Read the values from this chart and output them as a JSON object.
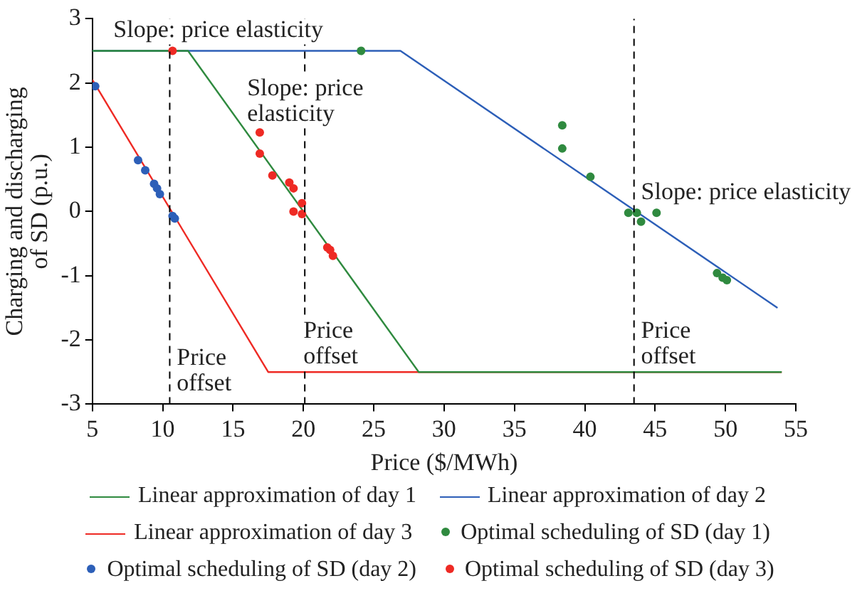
{
  "chart_data": {
    "type": "line",
    "xlabel": "Price ($/MWh)",
    "ylabel": "Charging and discharging\nof SD (p.u.)",
    "xlim": [
      5,
      55
    ],
    "xticks": [
      5,
      10,
      15,
      20,
      25,
      30,
      35,
      40,
      45,
      50,
      55
    ],
    "ylim": [
      -3,
      3
    ],
    "yticks": [
      -3,
      -2,
      -1,
      0,
      1,
      2,
      3
    ],
    "grid": false,
    "legend": "bottom",
    "marker": "none",
    "line_style": "solid",
    "series": [
      {
        "name": "Linear approximation of day 1",
        "type": "line",
        "color": "#2f8a3f",
        "x": [
          5,
          11.8,
          28.2,
          54
        ],
        "values": [
          2.5,
          2.5,
          -2.5,
          -2.5
        ]
      },
      {
        "name": "Linear approximation of day 2",
        "type": "line",
        "color": "#2d5fb8",
        "x": [
          5,
          26.9,
          53.7
        ],
        "values": [
          2.5,
          2.5,
          -1.5
        ]
      },
      {
        "name": "Linear approximation of day 3",
        "type": "line",
        "color": "#ee2a24",
        "x": [
          5,
          17.5,
          54
        ],
        "values": [
          2.05,
          -2.5,
          -2.5
        ]
      },
      {
        "name": "Optimal scheduling of SD (day 1)",
        "type": "scatter",
        "marker": "circle",
        "color": "#2f8a3f",
        "x": [
          24.1,
          38.4,
          38.4,
          40.4,
          43.1,
          43.7,
          44.0,
          45.1,
          49.4,
          49.8,
          50.1
        ],
        "values": [
          2.5,
          1.34,
          0.98,
          0.54,
          -0.02,
          -0.02,
          -0.16,
          -0.02,
          -0.96,
          -1.03,
          -1.07
        ]
      },
      {
        "name": "Optimal scheduling of SD (day 2)",
        "type": "scatter",
        "marker": "circle",
        "color": "#2d5fb8",
        "x": [
          5.2,
          8.25,
          8.76,
          9.39,
          9.6,
          9.8,
          10.7,
          10.86
        ],
        "values": [
          1.95,
          0.8,
          0.64,
          0.43,
          0.36,
          0.27,
          -0.07,
          -0.11
        ]
      },
      {
        "name": "Optimal scheduling of SD (day 3)",
        "type": "scatter",
        "marker": "circle",
        "color": "#ee2a24",
        "x": [
          10.7,
          16.9,
          16.9,
          17.8,
          19.0,
          19.3,
          19.9,
          19.3,
          19.9,
          21.7,
          21.9,
          22.1
        ],
        "values": [
          2.5,
          1.23,
          0.9,
          0.56,
          0.45,
          0.36,
          0.13,
          0.0,
          -0.04,
          -0.56,
          -0.6,
          -0.69
        ]
      }
    ],
    "ref_lines": [
      {
        "axis": "x",
        "value": 10.5,
        "line_style": "dashed",
        "color": "#000000"
      },
      {
        "axis": "x",
        "value": 20.1,
        "line_style": "dashed",
        "color": "#000000"
      },
      {
        "axis": "x",
        "value": 43.5,
        "line_style": "dashed",
        "color": "#000000"
      }
    ],
    "annotations": [
      "Slope: price elasticity",
      "Slope: price\nelasticity",
      "Slope: price elasticity",
      "Price\noffset",
      "Price\noffset",
      "Price\noffset"
    ]
  }
}
